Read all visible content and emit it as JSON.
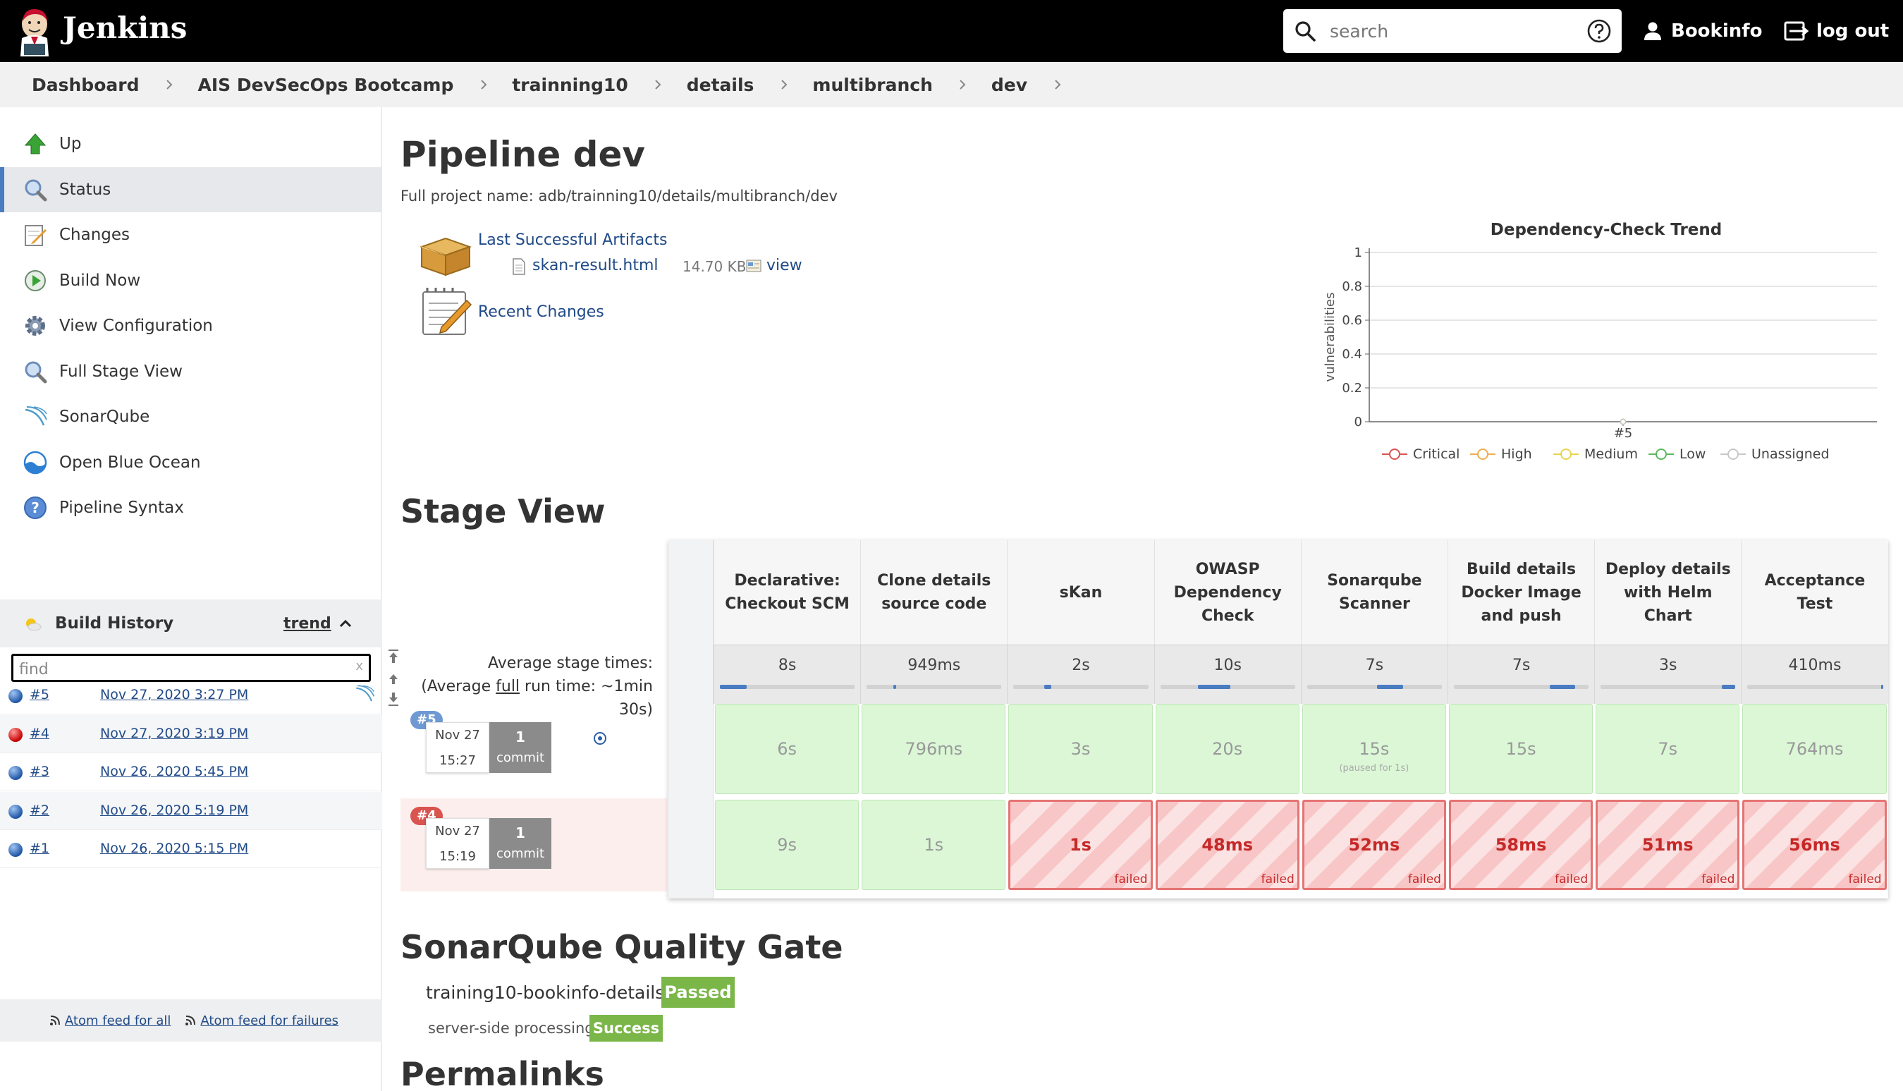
{
  "header": {
    "app_name": "Jenkins",
    "search_placeholder": "search",
    "user": "Bookinfo",
    "logout": "log out"
  },
  "breadcrumb": [
    "Dashboard",
    "AIS DevSecOps Bootcamp",
    "trainning10",
    "details",
    "multibranch",
    "dev"
  ],
  "sidebar": {
    "tasks": [
      {
        "label": "Up",
        "icon": "up-arrow-icon"
      },
      {
        "label": "Status",
        "icon": "status-magnifier-icon",
        "active": true
      },
      {
        "label": "Changes",
        "icon": "notepad-icon"
      },
      {
        "label": "Build Now",
        "icon": "build-now-icon"
      },
      {
        "label": "View Configuration",
        "icon": "gear-icon"
      },
      {
        "label": "Full Stage View",
        "icon": "magnifier-icon"
      },
      {
        "label": "SonarQube",
        "icon": "sonarqube-icon"
      },
      {
        "label": "Open Blue Ocean",
        "icon": "blue-ocean-icon"
      },
      {
        "label": "Pipeline Syntax",
        "icon": "help-icon"
      }
    ],
    "build_history": {
      "title": "Build History",
      "trend": "trend",
      "find_placeholder": "find",
      "find_clear": "x",
      "builds": [
        {
          "num": "#5",
          "date": "Nov 27, 2020 3:27 PM",
          "status": "success"
        },
        {
          "num": "#4",
          "date": "Nov 27, 2020 3:19 PM",
          "status": "failed"
        },
        {
          "num": "#3",
          "date": "Nov 26, 2020 5:45 PM",
          "status": "success"
        },
        {
          "num": "#2",
          "date": "Nov 26, 2020 5:19 PM",
          "status": "success"
        },
        {
          "num": "#1",
          "date": "Nov 26, 2020 5:15 PM",
          "status": "success"
        }
      ],
      "feed_all": "Atom feed for all",
      "feed_failures": "Atom feed for failures"
    }
  },
  "main": {
    "title": "Pipeline dev",
    "full_name": "Full project name: adb/trainning10/details/multibranch/dev",
    "artifacts_label": "Last Successful Artifacts",
    "artifact_file": "skan-result.html",
    "artifact_size": "14.70 KB",
    "artifact_view": "view",
    "recent_changes": "Recent Changes",
    "stage_view_title": "Stage View",
    "avg_label_1": "Average stage times:",
    "avg_label_2_pre": "(Average ",
    "avg_label_2_link": "full",
    "avg_label_2_post": " run time: ~1min 30s)",
    "sonar_title": "SonarQube Quality Gate",
    "sonar_project": "training10-bookinfo-details",
    "sonar_status": "Passed",
    "sonar_processing_label": "server-side processing:",
    "sonar_processing_status": "Success",
    "permalinks_title": "Permalinks"
  },
  "stages": [
    {
      "name": "Declarative: Checkout SCM",
      "avg": "8s",
      "bar": [
        0.0,
        0.2
      ]
    },
    {
      "name": "Clone details source code",
      "avg": "949ms",
      "bar": [
        0.2,
        0.22
      ]
    },
    {
      "name": "sKan",
      "avg": "2s",
      "bar": [
        0.23,
        0.28
      ]
    },
    {
      "name": "OWASP Dependency Check",
      "avg": "10s",
      "bar": [
        0.28,
        0.52
      ]
    },
    {
      "name": "Sonarqube Scanner",
      "avg": "7s",
      "bar": [
        0.52,
        0.71
      ]
    },
    {
      "name": "Build details Docker Image and push",
      "avg": "7s",
      "bar": [
        0.71,
        0.9
      ]
    },
    {
      "name": "Deploy details with Helm Chart",
      "avg": "3s",
      "bar": [
        0.9,
        1.0
      ]
    },
    {
      "name": "Acceptance Test",
      "avg": "410ms",
      "bar": [
        0.99,
        1.0
      ]
    }
  ],
  "runs": [
    {
      "badge": "#5",
      "date": "Nov 27",
      "time": "15:27",
      "commits": "1",
      "commit_label": "commit",
      "status": "success",
      "cells": [
        {
          "time": "6s",
          "status": "success"
        },
        {
          "time": "796ms",
          "status": "success"
        },
        {
          "time": "3s",
          "status": "success"
        },
        {
          "time": "20s",
          "status": "success"
        },
        {
          "time": "15s",
          "status": "success",
          "note": "(paused for 1s)"
        },
        {
          "time": "15s",
          "status": "success"
        },
        {
          "time": "7s",
          "status": "success"
        },
        {
          "time": "764ms",
          "status": "success"
        }
      ]
    },
    {
      "badge": "#4",
      "date": "Nov 27",
      "time": "15:19",
      "commits": "1",
      "commit_label": "commit",
      "status": "failed",
      "cells": [
        {
          "time": "9s",
          "status": "success"
        },
        {
          "time": "1s",
          "status": "success"
        },
        {
          "time": "1s",
          "status": "failed"
        },
        {
          "time": "48ms",
          "status": "failed"
        },
        {
          "time": "52ms",
          "status": "failed"
        },
        {
          "time": "58ms",
          "status": "failed"
        },
        {
          "time": "51ms",
          "status": "failed"
        },
        {
          "time": "56ms",
          "status": "failed"
        }
      ]
    }
  ],
  "failed_label": "failed",
  "colors": {
    "header_bg": "#000000",
    "link": "#204a87",
    "success_cell": "#dbf7d6",
    "failed_border": "#e57373",
    "badge_green": "#7ab648"
  },
  "chart_data": {
    "type": "line",
    "title": "Dependency-Check Trend",
    "ylabel": "vulnerabilities",
    "xlabel": "",
    "categories": [
      "#5"
    ],
    "ylim": [
      0,
      1
    ],
    "yticks": [
      "0",
      "0.2",
      "0.4",
      "0.6",
      "0.8",
      "1"
    ],
    "series": [
      {
        "name": "Critical",
        "values": [
          0
        ],
        "color": "#d9534f"
      },
      {
        "name": "High",
        "values": [
          0
        ],
        "color": "#f0ad4e"
      },
      {
        "name": "Medium",
        "values": [
          0
        ],
        "color": "#e8d44d"
      },
      {
        "name": "Low",
        "values": [
          0
        ],
        "color": "#5cb85c"
      },
      {
        "name": "Unassigned",
        "values": [
          0
        ],
        "color": "#c8c8c8"
      }
    ],
    "grid": true,
    "legend": "bottom"
  }
}
